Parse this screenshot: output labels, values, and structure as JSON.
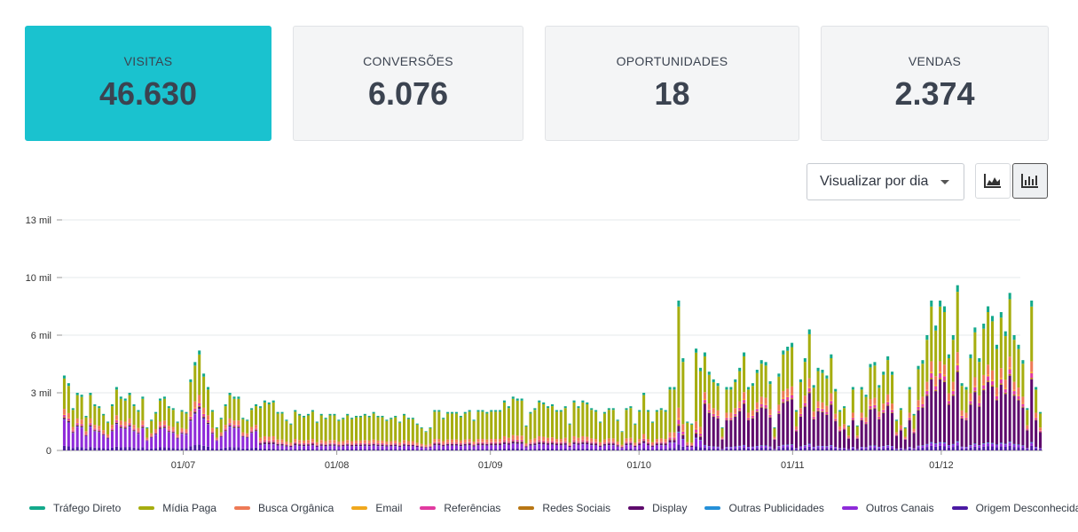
{
  "cards": [
    {
      "label": "VISITAS",
      "value": "46.630"
    },
    {
      "label": "CONVERSÕES",
      "value": "6.076"
    },
    {
      "label": "OPORTUNIDADES",
      "value": "18"
    },
    {
      "label": "VENDAS",
      "value": "2.374"
    }
  ],
  "toolbar": {
    "view_select": "Visualizar por dia",
    "area_icon": "area-chart-icon",
    "bar_icon": "bar-chart-icon"
  },
  "colors": {
    "accent": "#1ac2cf",
    "trafego_direto": "#13a98b",
    "midia_paga": "#a6ad0f",
    "busca_organica": "#ee7a56",
    "email": "#f0a81e",
    "referencias": "#e13aa0",
    "redes_sociais": "#b87613",
    "display": "#5e0a6c",
    "outras_publicidades": "#2590d8",
    "outros_canais": "#8e2bd9",
    "origem_desconhecida": "#4a1aa3"
  },
  "chart_data": {
    "type": "bar",
    "stacked": true,
    "y_ticks": [
      "0",
      "3 mil",
      "6 mil",
      "10 mil",
      "13 mil"
    ],
    "x_ticks": [
      "01/07",
      "01/08",
      "01/09",
      "01/10",
      "01/11",
      "01/12"
    ],
    "ylim": [
      0,
      12000
    ],
    "grid": true,
    "legend_position": "bottom",
    "x_range": [
      "2024-06-07",
      "2024-12-21"
    ],
    "series": [
      {
        "name": "Tráfego Direto",
        "color": "#13a98b"
      },
      {
        "name": "Mídia Paga",
        "color": "#a6ad0f"
      },
      {
        "name": "Busca Orgânica",
        "color": "#ee7a56"
      },
      {
        "name": "Email",
        "color": "#f0a81e"
      },
      {
        "name": "Referências",
        "color": "#e13aa0"
      },
      {
        "name": "Redes Sociais",
        "color": "#b87613"
      },
      {
        "name": "Display",
        "color": "#5e0a6c"
      },
      {
        "name": "Outras Publicidades",
        "color": "#2590d8"
      },
      {
        "name": "Outros Canais",
        "color": "#8e2bd9"
      },
      {
        "name": "Origem Desconhecida",
        "color": "#4a1aa3"
      }
    ],
    "totals": [
      3900,
      3500,
      2200,
      3000,
      2900,
      1800,
      3000,
      2400,
      2300,
      1900,
      1500,
      2400,
      3300,
      2800,
      2700,
      3000,
      2400,
      2100,
      2800,
      1200,
      1600,
      2000,
      2700,
      2800,
      2300,
      2200,
      1500,
      2100,
      2000,
      3700,
      4600,
      5200,
      4000,
      3300,
      2100,
      1200,
      1700,
      2400,
      3000,
      2800,
      2800,
      1700,
      1600,
      2200,
      2400,
      2300,
      2600,
      2500,
      2600,
      2000,
      2000,
      1600,
      1400,
      2100,
      1900,
      1800,
      1900,
      2100,
      1500,
      1900,
      1700,
      1900,
      1900,
      1600,
      1700,
      1900,
      1700,
      1800,
      1800,
      1900,
      1800,
      2000,
      1800,
      1800,
      1600,
      1700,
      1800,
      1500,
      1900,
      1700,
      1700,
      1400,
      1200,
      1000,
      1200,
      2100,
      2100,
      1700,
      2000,
      2000,
      2000,
      1800,
      2000,
      2100,
      1600,
      2100,
      2100,
      2000,
      2100,
      2100,
      2100,
      2600,
      2300,
      2800,
      2700,
      2700,
      1300,
      2000,
      2200,
      2600,
      2500,
      2300,
      2400,
      2100,
      2100,
      2300,
      1400,
      2600,
      2300,
      2600,
      2500,
      2200,
      2100,
      1500,
      2000,
      2200,
      2200,
      1600,
      1000,
      2200,
      2300,
      1400,
      2100,
      3000,
      2100,
      1500,
      2100,
      2200,
      2100,
      3300,
      3300,
      7800,
      4800,
      1500,
      1400,
      5300,
      4300,
      5100,
      4100,
      3700,
      3500,
      1200,
      3300,
      3300,
      3700,
      4300,
      5100,
      3300,
      3500,
      4200,
      4700,
      4600,
      3600,
      1200,
      4000,
      5200,
      5400,
      5600,
      2100,
      3700,
      4800,
      6300,
      3400,
      4300,
      4200,
      3900,
      5000,
      3200,
      2100,
      2300,
      1300,
      3300,
      1300,
      3300,
      2900,
      4500,
      4600,
      3400,
      4100,
      4900,
      4100,
      1600,
      2200,
      1200,
      3300,
      1900,
      4400,
      4700,
      6000,
      7800,
      6500,
      7800,
      7500,
      5000,
      6000,
      8600,
      3500,
      3300,
      5000,
      6400,
      4800,
      6600,
      7500,
      7000,
      5500,
      7200,
      6200,
      8200,
      6000,
      5500,
      4700,
      2200,
      7800,
      3300,
      2000
    ]
  },
  "legend": [
    {
      "label": "Tráfego Direto",
      "color": "#13a98b"
    },
    {
      "label": "Mídia Paga",
      "color": "#a6ad0f"
    },
    {
      "label": "Busca Orgânica",
      "color": "#ee7a56"
    },
    {
      "label": "Email",
      "color": "#f0a81e"
    },
    {
      "label": "Referências",
      "color": "#e13aa0"
    },
    {
      "label": "Redes Sociais",
      "color": "#b87613"
    },
    {
      "label": "Display",
      "color": "#5e0a6c"
    },
    {
      "label": "Outras Publicidades",
      "color": "#2590d8"
    },
    {
      "label": "Outros Canais",
      "color": "#8e2bd9"
    },
    {
      "label": "Origem Desconhecida",
      "color": "#4a1aa3"
    }
  ]
}
